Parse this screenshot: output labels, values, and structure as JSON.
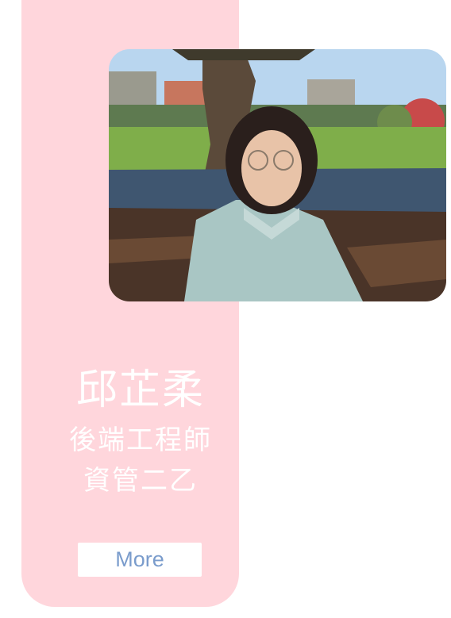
{
  "profile": {
    "name": "邱芷柔",
    "role": "後端工程師",
    "department": "資管二乙",
    "more_label": "More"
  },
  "colors": {
    "card_background": "#ffd6dc",
    "button_text": "#7a9ccc",
    "text": "#ffffff"
  }
}
